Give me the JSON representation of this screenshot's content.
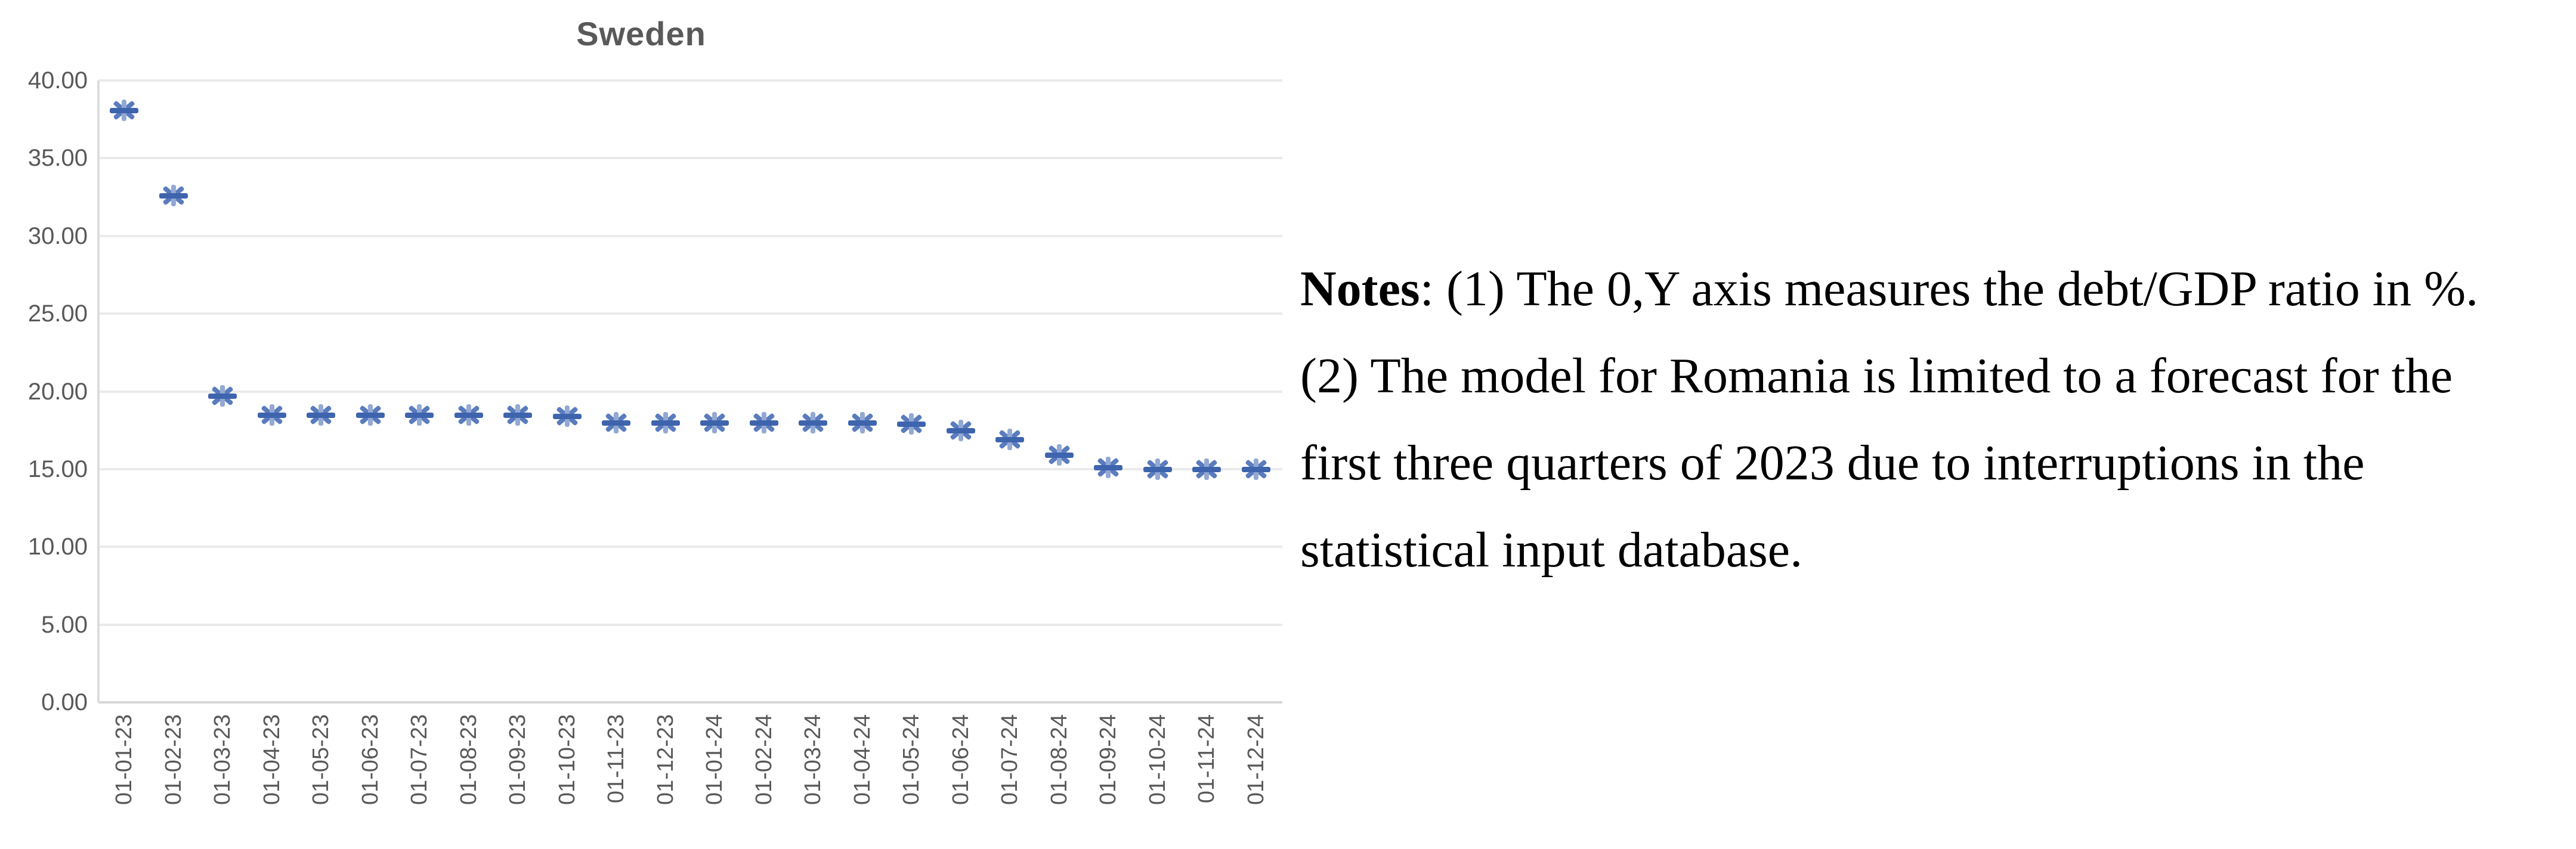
{
  "figure": {
    "title": "Sweden"
  },
  "notes": {
    "label": "Notes",
    "line1_rest": ": (1) The 0,Y axis measures the debt/GDP ratio in %.",
    "line2": "(2) The model for Romania is limited to a forecast for the",
    "line3": "first three quarters of 2023 due to interruptions in the",
    "line4": "statistical input database."
  },
  "chart_data": {
    "type": "scatter",
    "title": "Sweden",
    "xlabel": "",
    "ylabel": "",
    "categories": [
      "01-01-23",
      "01-02-23",
      "01-03-23",
      "01-04-23",
      "01-05-23",
      "01-06-23",
      "01-07-23",
      "01-08-23",
      "01-09-23",
      "01-10-23",
      "01-11-23",
      "01-12-23",
      "01-01-24",
      "01-02-24",
      "01-03-24",
      "01-04-24",
      "01-05-24",
      "01-06-24",
      "01-07-24",
      "01-08-24",
      "01-09-24",
      "01-10-24",
      "01-11-24",
      "01-12-24"
    ],
    "series": [
      {
        "name": "debt/GDP ratio (%)",
        "values": [
          38.1,
          32.6,
          19.7,
          18.5,
          18.5,
          18.5,
          18.5,
          18.5,
          18.5,
          18.4,
          18.0,
          18.0,
          18.0,
          18.0,
          18.0,
          18.0,
          17.9,
          17.5,
          16.9,
          15.9,
          15.1,
          15.0,
          15.0,
          15.0
        ]
      }
    ],
    "ylim": [
      0,
      40
    ],
    "ytick_step": 5,
    "ytick_labels": [
      "0.00",
      "5.00",
      "10.00",
      "15.00",
      "20.00",
      "25.00",
      "30.00",
      "35.00",
      "40.00"
    ],
    "grid": true,
    "legend_position": "none",
    "marker_style": "asterisk-with-dash",
    "marker_color": "#3e64ad",
    "gridline_color": "#eaeaea",
    "label_color": "#595959",
    "title_color": "#595959"
  }
}
